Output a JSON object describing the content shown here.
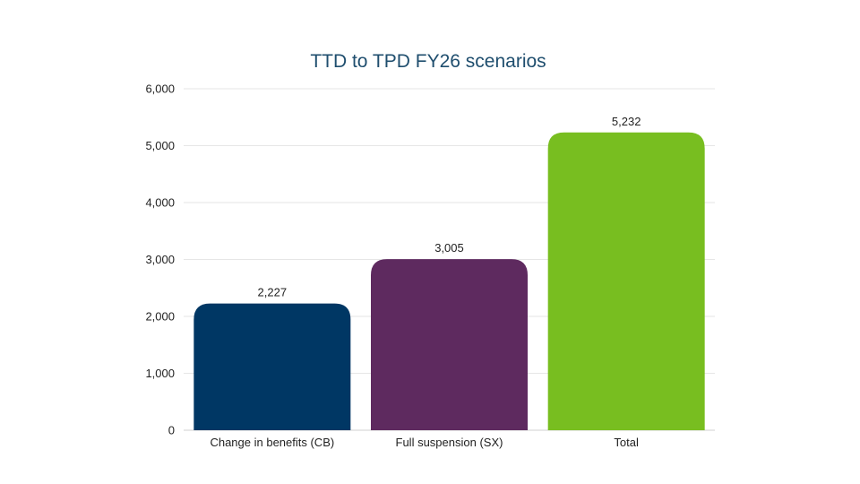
{
  "chart_data": {
    "type": "bar",
    "title": "TTD to TPD FY26 scenarios",
    "categories": [
      "Change in benefits (CB)",
      "Full suspension (SX)",
      "Total"
    ],
    "values": [
      2227,
      3005,
      5232
    ],
    "data_labels": [
      "2,227",
      "3,005",
      "5,232"
    ],
    "colors": [
      "#003764",
      "#5e2a5f",
      "#78be20"
    ],
    "ylim": [
      0,
      6000
    ],
    "yticks": [
      0,
      1000,
      2000,
      3000,
      4000,
      5000,
      6000
    ],
    "ytick_labels": [
      "0",
      "1,000",
      "2,000",
      "3,000",
      "4,000",
      "5,000",
      "6,000"
    ],
    "grid": true,
    "legend": "none"
  }
}
